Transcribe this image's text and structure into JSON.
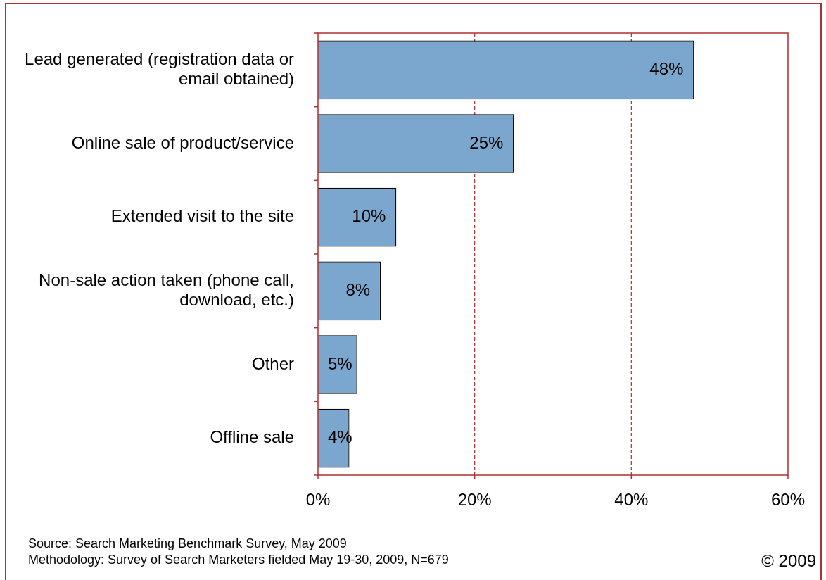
{
  "chart_data": {
    "type": "bar",
    "orientation": "horizontal",
    "categories": [
      "Lead generated (registration data or email obtained)",
      "Online sale of product/service",
      "Extended visit to the site",
      "Non-sale action taken (phone call, download, etc.)",
      "Other",
      "Offline sale"
    ],
    "values": [
      48,
      25,
      10,
      8,
      5,
      4
    ],
    "value_labels": [
      "48%",
      "25%",
      "10%",
      "8%",
      "5%",
      "4%"
    ],
    "color": "#7ba7cf",
    "xlim": [
      0,
      60
    ],
    "xticks": [
      {
        "value": 0,
        "label": "0%"
      },
      {
        "value": 20,
        "label": "20%"
      },
      {
        "value": 40,
        "label": "40%"
      },
      {
        "value": 60,
        "label": "60%"
      }
    ],
    "grid": "x",
    "annotations": [
      "Source: Search Marketing Benchmark Survey, May 2009",
      "Methodology: Survey of Search Marketers fielded May 19-30, 2009, N=679",
      "© 2009"
    ]
  }
}
